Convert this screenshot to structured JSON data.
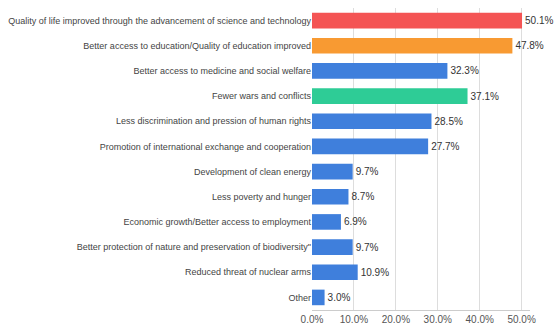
{
  "chart_data": {
    "type": "bar",
    "orientation": "horizontal",
    "categories": [
      "Quality of life improved through the advancement of science and technology",
      "Better access to education/Quality of education improved",
      "Better access to medicine and social welfare",
      "Fewer wars and conflicts",
      "Less discrimination and pression of human rights",
      "Promotion of international exchange and cooperation",
      "Development of clean energy",
      "Less poverty and hunger",
      "Economic growth/Better access to employment",
      "Better protection of nature and preservation of biodiversity\"",
      "Reduced threat of nuclear arms",
      "Other"
    ],
    "values": [
      50.1,
      47.8,
      32.3,
      37.1,
      28.5,
      27.7,
      9.7,
      8.7,
      6.9,
      9.7,
      10.9,
      3.0
    ],
    "value_labels": [
      "50.1%",
      "47.8%",
      "32.3%",
      "37.1%",
      "28.5%",
      "27.7%",
      "9.7%",
      "8.7%",
      "6.9%",
      "9.7%",
      "10.9%",
      "3.0%"
    ],
    "colors": [
      "#f45454",
      "#f89a32",
      "#3f7fdc",
      "#2ecc96",
      "#3f7fdc",
      "#3f7fdc",
      "#3f7fdc",
      "#3f7fdc",
      "#3f7fdc",
      "#3f7fdc",
      "#3f7fdc",
      "#3f7fdc"
    ],
    "xlim": [
      0,
      52
    ],
    "xticks": [
      {
        "value": 0,
        "label": "0.0%"
      },
      {
        "value": 10,
        "label": "10.0%"
      },
      {
        "value": 20,
        "label": "20.0%"
      },
      {
        "value": 30,
        "label": "30.0%"
      },
      {
        "value": 40,
        "label": "40.0%"
      },
      {
        "value": 50,
        "label": "50.0%"
      }
    ],
    "grid": true,
    "data_labels": true
  }
}
